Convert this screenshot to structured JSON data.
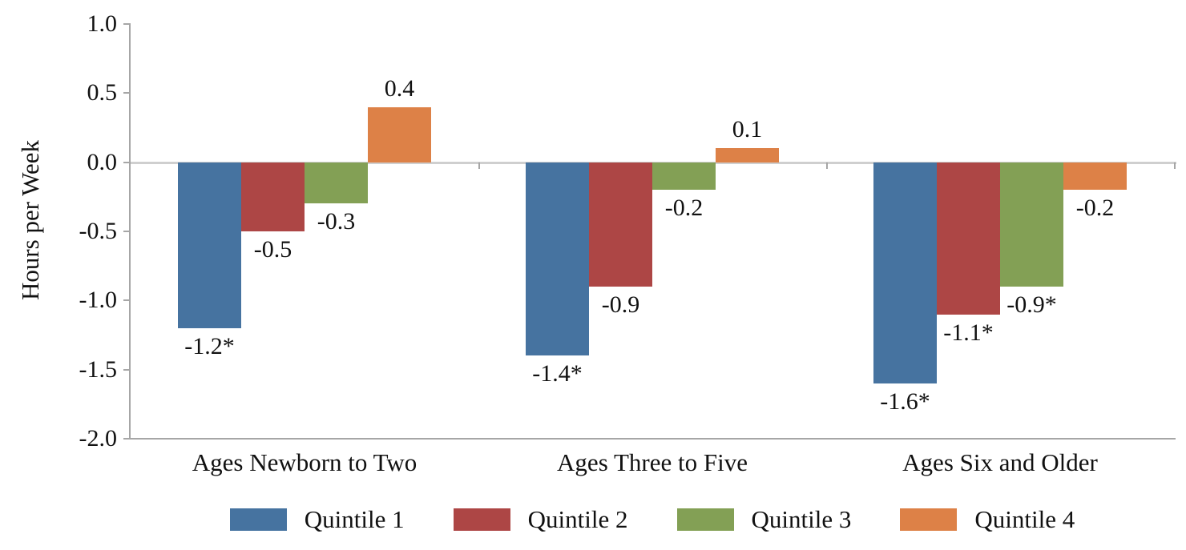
{
  "chart_data": {
    "type": "bar",
    "ylabel": "Hours per Week",
    "categories": [
      "Ages Newborn to Two",
      "Ages Three to Five",
      "Ages Six and Older"
    ],
    "series": [
      {
        "name": "Quintile 1",
        "color": "#4673A0",
        "values": [
          -1.2,
          -1.4,
          -1.6
        ],
        "point_labels": [
          "-1.2*",
          "-1.4*",
          "-1.6*"
        ]
      },
      {
        "name": "Quintile 2",
        "color": "#AD4645",
        "values": [
          -0.5,
          -0.9,
          -1.1
        ],
        "point_labels": [
          "-0.5",
          "-0.9",
          "-1.1*"
        ]
      },
      {
        "name": "Quintile 3",
        "color": "#83A055",
        "values": [
          -0.3,
          -0.2,
          -0.9
        ],
        "point_labels": [
          "-0.3",
          "-0.2",
          "-0.9*"
        ]
      },
      {
        "name": "Quintile 4",
        "color": "#DD8147",
        "values": [
          0.4,
          0.1,
          -0.2
        ],
        "point_labels": [
          "0.4",
          "0.1",
          "-0.2"
        ]
      }
    ],
    "ylim": [
      -2.0,
      1.0
    ],
    "y_ticks": [
      "1.0",
      "0.5",
      "0.0",
      "-0.5",
      "-1.0",
      "-1.5",
      "-2.0"
    ],
    "legend_position": "bottom",
    "grid": false
  }
}
